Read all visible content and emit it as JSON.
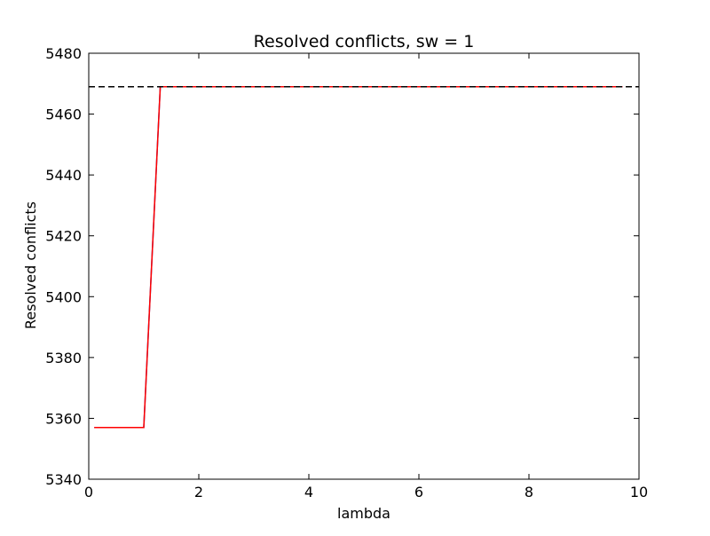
{
  "chart_data": {
    "type": "line",
    "title": "Resolved conflicts, sw = 1",
    "xlabel": "lambda",
    "ylabel": "Resolved conflicts",
    "xlim": [
      0,
      10
    ],
    "ylim": [
      5340,
      5480
    ],
    "xticks": [
      0,
      2,
      4,
      6,
      8,
      10
    ],
    "yticks": [
      5340,
      5360,
      5380,
      5400,
      5420,
      5440,
      5460,
      5480
    ],
    "grid": false,
    "legend": "none",
    "series": [
      {
        "color": "#1f3fbf",
        "style": "solid",
        "x": [
          0.1,
          1.0,
          1.3,
          9.7
        ],
        "y": [
          5357,
          5357,
          5469,
          5469
        ]
      },
      {
        "color": "#ff0000",
        "style": "solid",
        "x": [
          0.1,
          1.0,
          1.3,
          9.7
        ],
        "y": [
          5357,
          5357,
          5469,
          5469
        ]
      },
      {
        "color": "#000000",
        "style": "dashed",
        "x": [
          0,
          10
        ],
        "y": [
          5469,
          5469
        ]
      }
    ]
  }
}
